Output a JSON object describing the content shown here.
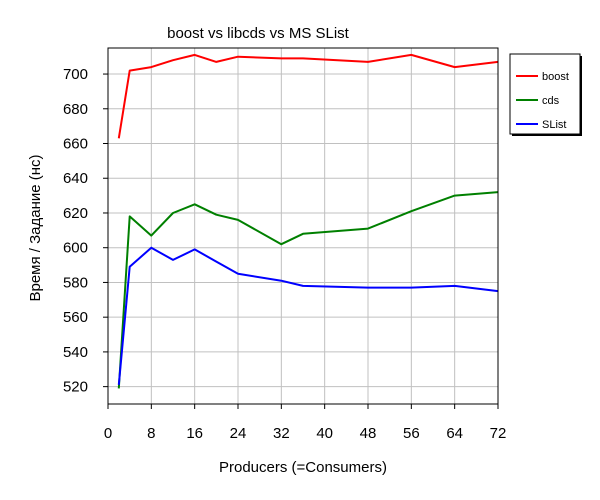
{
  "chart_data": {
    "type": "line",
    "title": "boost vs libcds vs MS SList",
    "xlabel": "Producers (=Consumers)",
    "ylabel": "Время / Задание (нс)",
    "xlim": [
      0,
      72
    ],
    "ylim": [
      510,
      715
    ],
    "xticks": [
      0,
      8,
      16,
      24,
      32,
      40,
      48,
      56,
      64,
      72
    ],
    "yticks": [
      520,
      540,
      560,
      580,
      600,
      620,
      640,
      660,
      680,
      700
    ],
    "grid": true,
    "legend_position": "right-top",
    "series": [
      {
        "name": "boost",
        "color": "#ff0000",
        "x": [
          2,
          4,
          8,
          12,
          16,
          20,
          24,
          32,
          36,
          48,
          56,
          64,
          72
        ],
        "y": [
          663,
          702,
          704,
          708,
          711,
          707,
          710,
          709,
          709,
          707,
          711,
          704,
          707
        ]
      },
      {
        "name": "cds",
        "color": "#008000",
        "x": [
          2,
          4,
          8,
          12,
          16,
          20,
          24,
          32,
          36,
          48,
          56,
          64,
          72
        ],
        "y": [
          519,
          618,
          607,
          620,
          625,
          619,
          616,
          602,
          608,
          611,
          621,
          630,
          632
        ]
      },
      {
        "name": "SList",
        "color": "#0000ff",
        "x": [
          2,
          4,
          8,
          12,
          16,
          20,
          24,
          32,
          36,
          48,
          56,
          64,
          72
        ],
        "y": [
          521,
          589,
          600,
          593,
          599,
          592,
          585,
          581,
          578,
          577,
          577,
          578,
          575
        ]
      }
    ]
  }
}
